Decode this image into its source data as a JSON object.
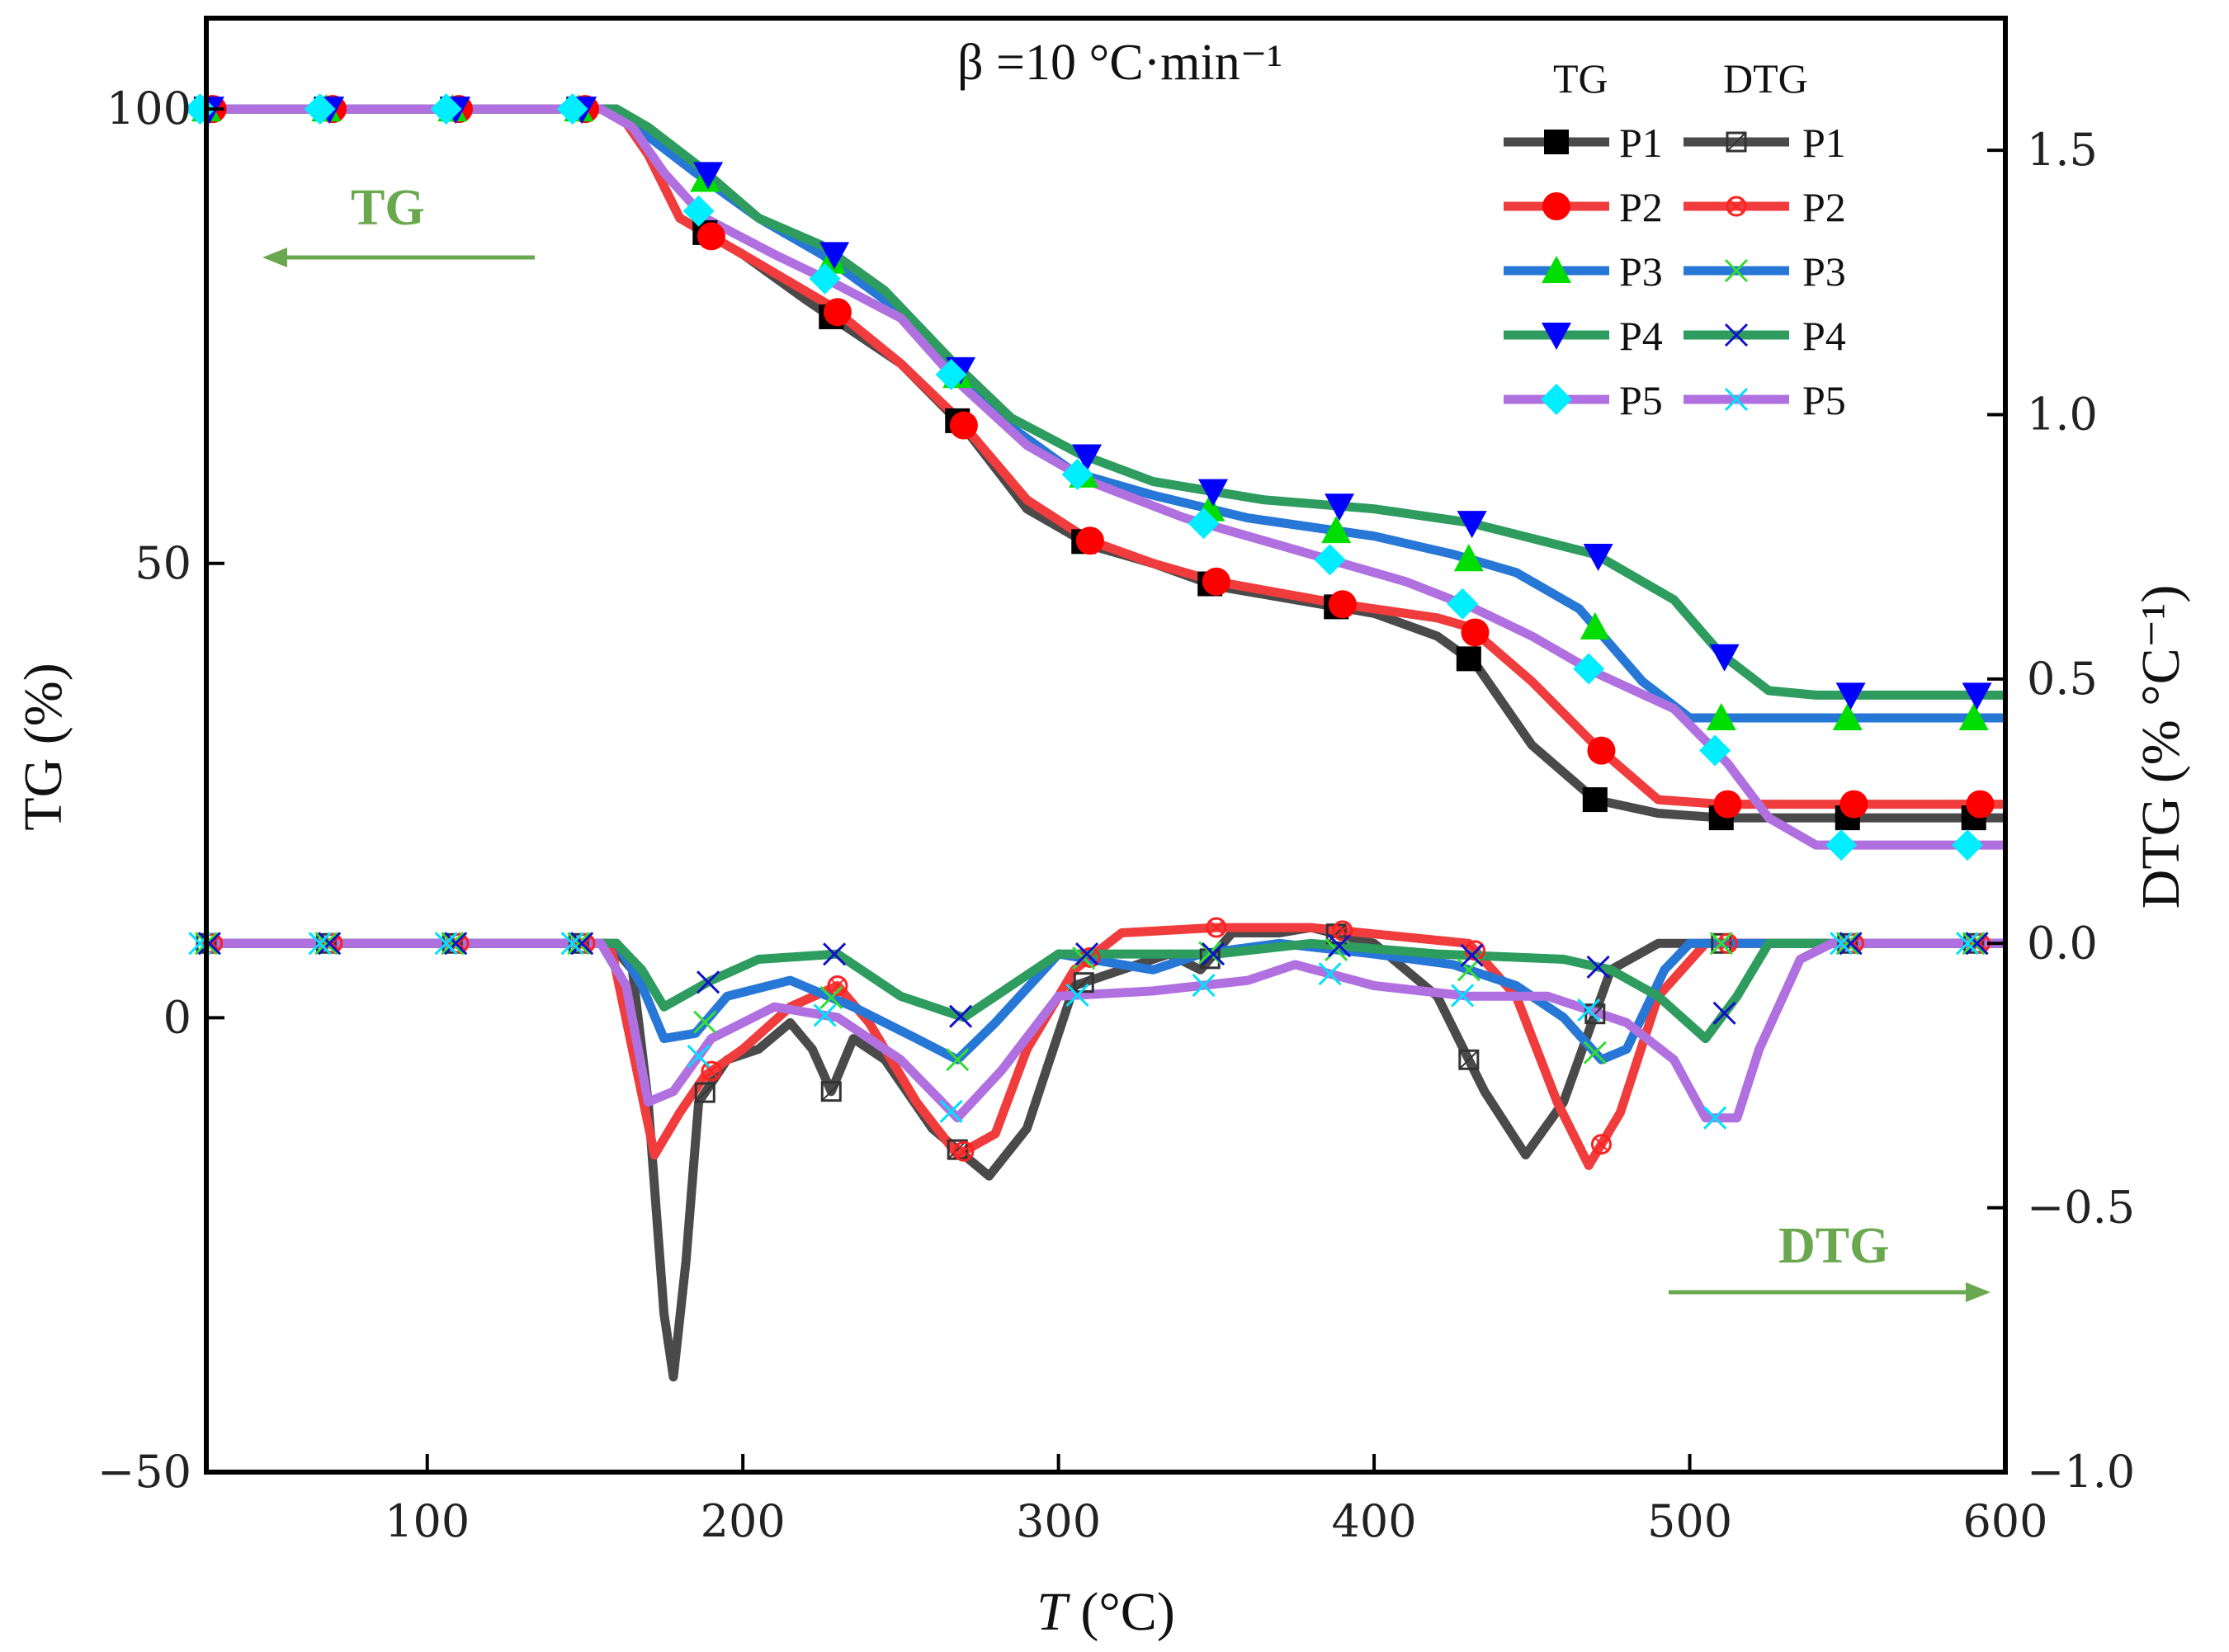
{
  "chart_data": {
    "type": "line",
    "annotation": "β =10 °C·min⁻¹",
    "xlabel_italic": "T",
    "xlabel_unit": " (°C)",
    "ylabel_left": "TG (%)",
    "ylabel_right": "DTG (% °C⁻¹)",
    "xlim": [
      30,
      600
    ],
    "ylim_left": [
      -50,
      110
    ],
    "ylim_right": [
      -1.0,
      1.75
    ],
    "x_ticks": [
      100,
      200,
      300,
      400,
      500,
      600
    ],
    "y_left_ticks": [
      -50,
      0,
      50,
      100
    ],
    "y_right_ticks": [
      -1.0,
      -0.5,
      0.0,
      0.5,
      1.0,
      1.5
    ],
    "y_right_tick_labels": [
      "−1.0",
      "−0.5",
      "0.0",
      "0.5",
      "1.0",
      "1.5"
    ],
    "y_left_tick_labels": [
      "−50",
      "0",
      "50",
      "100"
    ],
    "arrows": [
      {
        "label": "TG",
        "direction": "left",
        "color": "#6aa84f"
      },
      {
        "label": "DTG",
        "direction": "right",
        "color": "#6aa84f"
      }
    ],
    "legend": {
      "placement": "top-right",
      "col_tg": "TG",
      "col_dtg": "DTG"
    },
    "series": [
      {
        "name": "P1",
        "color": "#4a4a4a",
        "tg_marker": "square",
        "dtg_marker": "open-square",
        "tg_marker_color": "#000000",
        "tg": [
          [
            30,
            100
          ],
          [
            160,
            100
          ],
          [
            170,
            95
          ],
          [
            180,
            88
          ],
          [
            200,
            84
          ],
          [
            220,
            79
          ],
          [
            250,
            72
          ],
          [
            270,
            65
          ],
          [
            290,
            56
          ],
          [
            310,
            52
          ],
          [
            330,
            50
          ],
          [
            350,
            47.5
          ],
          [
            400,
            44.5
          ],
          [
            420,
            42
          ],
          [
            432,
            39
          ],
          [
            450,
            30
          ],
          [
            470,
            24
          ],
          [
            490,
            22.5
          ],
          [
            510,
            22
          ],
          [
            600,
            22
          ]
        ],
        "dtg": [
          [
            30,
            0
          ],
          [
            158,
            0
          ],
          [
            165,
            -0.05
          ],
          [
            170,
            -0.3
          ],
          [
            175,
            -0.7
          ],
          [
            178,
            -0.82
          ],
          [
            182,
            -0.6
          ],
          [
            186,
            -0.3
          ],
          [
            195,
            -0.22
          ],
          [
            205,
            -0.2
          ],
          [
            215,
            -0.15
          ],
          [
            222,
            -0.2
          ],
          [
            228,
            -0.28
          ],
          [
            235,
            -0.18
          ],
          [
            245,
            -0.22
          ],
          [
            260,
            -0.35
          ],
          [
            270,
            -0.4
          ],
          [
            278,
            -0.44
          ],
          [
            290,
            -0.35
          ],
          [
            305,
            -0.08
          ],
          [
            320,
            -0.05
          ],
          [
            335,
            -0.02
          ],
          [
            345,
            -0.05
          ],
          [
            355,
            0.02
          ],
          [
            370,
            0.02
          ],
          [
            380,
            0.03
          ],
          [
            400,
            0.0
          ],
          [
            420,
            -0.1
          ],
          [
            435,
            -0.28
          ],
          [
            448,
            -0.4
          ],
          [
            460,
            -0.3
          ],
          [
            475,
            -0.05
          ],
          [
            490,
            0.0
          ],
          [
            600,
            0.0
          ]
        ]
      },
      {
        "name": "P2",
        "color": "#f03c3c",
        "tg_marker": "circle",
        "dtg_marker": "open-circle-x",
        "tg_marker_color": "#ff0000",
        "tg": [
          [
            30,
            100
          ],
          [
            160,
            100
          ],
          [
            170,
            95
          ],
          [
            180,
            88
          ],
          [
            200,
            84
          ],
          [
            227,
            78.5
          ],
          [
            250,
            72
          ],
          [
            268,
            66
          ],
          [
            290,
            57
          ],
          [
            310,
            52.5
          ],
          [
            330,
            50
          ],
          [
            350,
            48
          ],
          [
            390,
            45.5
          ],
          [
            420,
            44
          ],
          [
            430,
            43
          ],
          [
            450,
            37
          ],
          [
            470,
            30
          ],
          [
            490,
            24
          ],
          [
            510,
            23.5
          ],
          [
            600,
            23.5
          ]
        ],
        "dtg": [
          [
            30,
            0
          ],
          [
            158,
            0
          ],
          [
            165,
            -0.2
          ],
          [
            172,
            -0.4
          ],
          [
            180,
            -0.32
          ],
          [
            188,
            -0.25
          ],
          [
            200,
            -0.2
          ],
          [
            215,
            -0.12
          ],
          [
            230,
            -0.08
          ],
          [
            240,
            -0.15
          ],
          [
            255,
            -0.3
          ],
          [
            268,
            -0.4
          ],
          [
            280,
            -0.36
          ],
          [
            290,
            -0.2
          ],
          [
            305,
            -0.05
          ],
          [
            320,
            0.02
          ],
          [
            350,
            0.03
          ],
          [
            380,
            0.03
          ],
          [
            430,
            0.0
          ],
          [
            445,
            -0.1
          ],
          [
            458,
            -0.3
          ],
          [
            468,
            -0.42
          ],
          [
            478,
            -0.32
          ],
          [
            490,
            -0.1
          ],
          [
            505,
            0.0
          ],
          [
            600,
            0.0
          ]
        ]
      },
      {
        "name": "P3",
        "color": "#2777d6",
        "tg_marker": "triangle-up",
        "dtg_marker": "cross",
        "tg_marker_color": "#00dd00",
        "tg": [
          [
            30,
            100
          ],
          [
            160,
            100
          ],
          [
            170,
            97
          ],
          [
            185,
            93
          ],
          [
            205,
            88
          ],
          [
            225,
            84
          ],
          [
            245,
            79
          ],
          [
            267,
            71
          ],
          [
            285,
            65
          ],
          [
            305,
            60
          ],
          [
            330,
            57.5
          ],
          [
            360,
            55
          ],
          [
            400,
            53
          ],
          [
            425,
            51
          ],
          [
            445,
            49
          ],
          [
            465,
            45
          ],
          [
            485,
            37
          ],
          [
            500,
            33
          ],
          [
            520,
            33
          ],
          [
            600,
            33
          ]
        ],
        "dtg": [
          [
            30,
            0
          ],
          [
            160,
            0
          ],
          [
            168,
            -0.08
          ],
          [
            175,
            -0.18
          ],
          [
            185,
            -0.17
          ],
          [
            195,
            -0.1
          ],
          [
            215,
            -0.07
          ],
          [
            235,
            -0.12
          ],
          [
            255,
            -0.18
          ],
          [
            268,
            -0.22
          ],
          [
            280,
            -0.15
          ],
          [
            300,
            -0.02
          ],
          [
            330,
            -0.05
          ],
          [
            345,
            -0.02
          ],
          [
            370,
            0.0
          ],
          [
            400,
            -0.02
          ],
          [
            425,
            -0.04
          ],
          [
            445,
            -0.08
          ],
          [
            460,
            -0.14
          ],
          [
            472,
            -0.22
          ],
          [
            480,
            -0.2
          ],
          [
            492,
            -0.05
          ],
          [
            500,
            0.0
          ],
          [
            600,
            0.0
          ]
        ]
      },
      {
        "name": "P4",
        "color": "#2e9c5e",
        "tg_marker": "triangle-down",
        "dtg_marker": "open-x",
        "tg_marker_color": "#0000ff",
        "tg": [
          [
            30,
            100
          ],
          [
            160,
            100
          ],
          [
            170,
            98
          ],
          [
            185,
            94
          ],
          [
            205,
            88
          ],
          [
            225,
            85
          ],
          [
            245,
            80
          ],
          [
            267,
            72
          ],
          [
            285,
            66
          ],
          [
            307,
            62
          ],
          [
            330,
            59
          ],
          [
            365,
            57
          ],
          [
            400,
            56
          ],
          [
            430,
            54.5
          ],
          [
            470,
            51
          ],
          [
            495,
            46
          ],
          [
            510,
            40
          ],
          [
            525,
            36
          ],
          [
            540,
            35.5
          ],
          [
            600,
            35.5
          ]
        ],
        "dtg": [
          [
            30,
            0
          ],
          [
            160,
            0
          ],
          [
            168,
            -0.05
          ],
          [
            175,
            -0.12
          ],
          [
            190,
            -0.07
          ],
          [
            205,
            -0.03
          ],
          [
            230,
            -0.02
          ],
          [
            250,
            -0.1
          ],
          [
            270,
            -0.14
          ],
          [
            285,
            -0.08
          ],
          [
            300,
            -0.02
          ],
          [
            350,
            -0.02
          ],
          [
            380,
            0.0
          ],
          [
            420,
            -0.02
          ],
          [
            460,
            -0.03
          ],
          [
            475,
            -0.05
          ],
          [
            490,
            -0.1
          ],
          [
            505,
            -0.18
          ],
          [
            515,
            -0.1
          ],
          [
            525,
            0.0
          ],
          [
            600,
            0.0
          ]
        ]
      },
      {
        "name": "P5",
        "color": "#b070e0",
        "tg_marker": "diamond",
        "dtg_marker": "cyan-x",
        "tg_marker_color": "#00eeff",
        "tg": [
          [
            30,
            100
          ],
          [
            155,
            100
          ],
          [
            165,
            98
          ],
          [
            175,
            93
          ],
          [
            188,
            88
          ],
          [
            210,
            84
          ],
          [
            228,
            81
          ],
          [
            250,
            77
          ],
          [
            268,
            70
          ],
          [
            290,
            63
          ],
          [
            310,
            59
          ],
          [
            340,
            55
          ],
          [
            370,
            52
          ],
          [
            390,
            50
          ],
          [
            410,
            48
          ],
          [
            432,
            45
          ],
          [
            450,
            42
          ],
          [
            470,
            38
          ],
          [
            495,
            34
          ],
          [
            512,
            28
          ],
          [
            525,
            22
          ],
          [
            540,
            19
          ],
          [
            600,
            19
          ]
        ],
        "dtg": [
          [
            30,
            0
          ],
          [
            155,
            0
          ],
          [
            163,
            -0.08
          ],
          [
            170,
            -0.3
          ],
          [
            178,
            -0.28
          ],
          [
            190,
            -0.18
          ],
          [
            210,
            -0.12
          ],
          [
            230,
            -0.14
          ],
          [
            250,
            -0.22
          ],
          [
            268,
            -0.33
          ],
          [
            282,
            -0.24
          ],
          [
            300,
            -0.1
          ],
          [
            330,
            -0.09
          ],
          [
            360,
            -0.07
          ],
          [
            375,
            -0.04
          ],
          [
            400,
            -0.08
          ],
          [
            430,
            -0.1
          ],
          [
            455,
            -0.1
          ],
          [
            480,
            -0.15
          ],
          [
            495,
            -0.22
          ],
          [
            505,
            -0.33
          ],
          [
            515,
            -0.33
          ],
          [
            522,
            -0.2
          ],
          [
            535,
            -0.03
          ],
          [
            545,
            0.0
          ],
          [
            600,
            0.0
          ]
        ]
      }
    ]
  }
}
